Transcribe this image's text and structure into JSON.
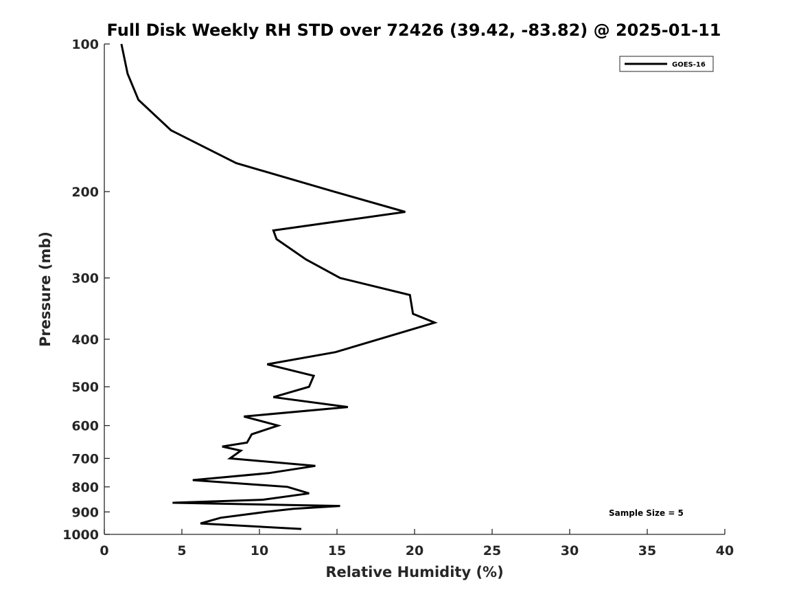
{
  "chart_data": {
    "type": "line",
    "title": "Full Disk Weekly RH STD over 72426 (39.42, -83.82) @ 2025-01-11",
    "xlabel": "Relative Humidity (%)",
    "ylabel": "Pressure (mb)",
    "xlim": [
      0,
      40
    ],
    "ylim": [
      100,
      1000
    ],
    "y_scale": "log",
    "y_reversed": true,
    "x_ticks": [
      "0",
      "5",
      "10",
      "15",
      "20",
      "25",
      "30",
      "35",
      "40"
    ],
    "y_ticks": [
      "100",
      "200",
      "300",
      "400",
      "500",
      "600",
      "700",
      "800",
      "900",
      "1000"
    ],
    "grid": false,
    "legend_position": "top-right",
    "annotation": "Sample Size = 5",
    "series": [
      {
        "name": "GOES-16",
        "color": "#000000",
        "x": [
          1.1,
          1.5,
          2.2,
          4.3,
          8.5,
          14.8,
          19.4,
          10.9,
          11.1,
          13.0,
          15.2,
          19.7,
          19.8,
          19.9,
          21.3,
          14.9,
          10.5,
          13.5,
          13.2,
          10.9,
          15.7,
          9.0,
          11.2,
          9.5,
          9.2,
          7.6,
          8.8,
          8.1,
          13.6,
          10.6,
          5.7,
          11.8,
          13.2,
          10.2,
          4.4,
          15.2,
          12.2,
          10.4,
          7.5,
          6.2,
          12.7
        ],
        "y": [
          100,
          115,
          130,
          150,
          175,
          200,
          220,
          240,
          250,
          275,
          300,
          325,
          340,
          355,
          370,
          425,
          450,
          475,
          500,
          525,
          550,
          575,
          600,
          625,
          650,
          662,
          675,
          700,
          725,
          750,
          775,
          800,
          825,
          850,
          862,
          875,
          887,
          900,
          925,
          950,
          975
        ]
      }
    ]
  }
}
